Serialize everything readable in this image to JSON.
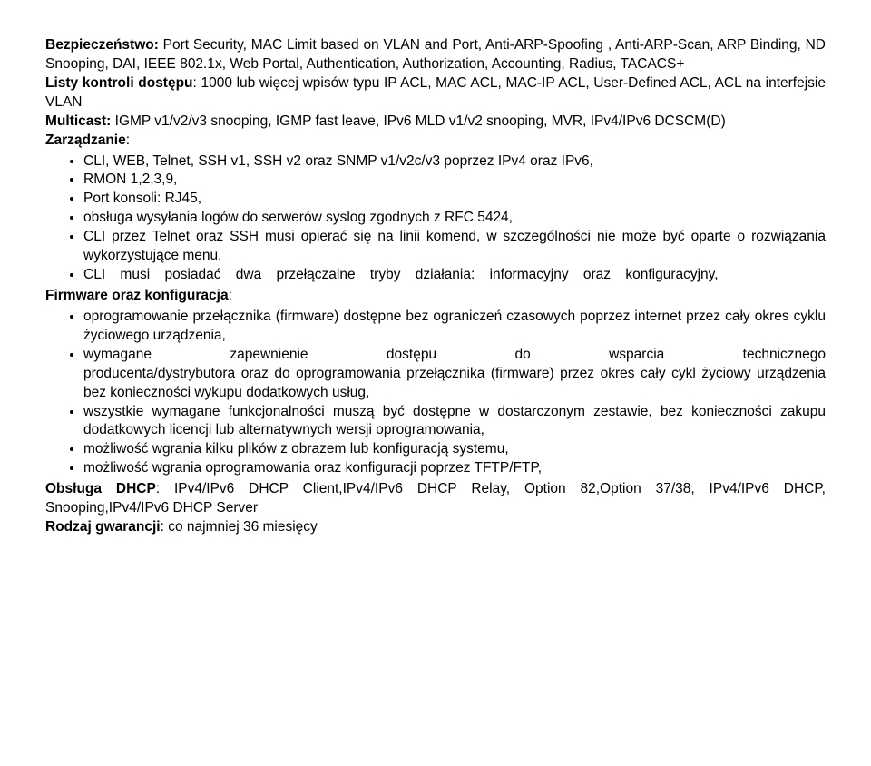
{
  "p1_label": "Bezpieczeństwo:",
  "p1_text": " Port Security, MAC Limit based on VLAN and Port, Anti-ARP-Spoofing , Anti-ARP-Scan, ARP Binding, ND Snooping, DAI, IEEE 802.1x, Web Portal, Authentication, Authorization, Accounting, Radius, TACACS+",
  "p2_label": "Listy kontroli dostępu",
  "p2_text": ": 1000 lub więcej wpisów typu IP ACL, MAC ACL, MAC-IP ACL, User-Defined ACL, ACL na interfejsie VLAN",
  "p3_label": "Multicast:",
  "p3_text": " IGMP v1/v2/v3 snooping, IGMP fast leave, IPv6 MLD v1/v2 snooping, MVR, IPv4/IPv6 DCSCM(D)",
  "mgmt_label": "Zarządzanie",
  "mgmt_colon": ":",
  "mgmt_items": {
    "i0": "CLI, WEB, Telnet, SSH v1, SSH v2 oraz SNMP v1/v2c/v3 poprzez IPv4 oraz IPv6,",
    "i1": "RMON 1,2,3,9,",
    "i2": "Port konsoli: RJ45,",
    "i3": "obsługa wysyłania logów do serwerów syslog zgodnych z RFC 5424,",
    "i4": "CLI przez Telnet oraz SSH musi opierać się na linii komend, w szczególności nie może być oparte o rozwiązania wykorzystujące menu,",
    "i5": "CLI musi posiadać dwa przełączalne tryby działania: informacyjny oraz konfiguracyjny,"
  },
  "fw_label": "Firmware oraz konfiguracja",
  "fw_colon": ":",
  "fw_items": {
    "i0": "oprogramowanie przełącznika (firmware) dostępne bez ograniczeń czasowych poprzez internet przez cały okres cyklu życiowego urządzenia,",
    "i1": "wymagane zapewnienie dostępu do wsparcia technicznego producenta/dystrybutora oraz do oprogramowania przełącznika (firmware) przez okres cały cykl życiowy urządzenia bez konieczności wykupu dodatkowych usług,",
    "i2": "wszystkie wymagane funkcjonalności muszą być dostępne w dostarczonym zestawie, bez konieczności zakupu dodatkowych licencji lub alternatywnych wersji oprogramowania,",
    "i3": "możliwość wgrania kilku plików z obrazem lub konfiguracją systemu,",
    "i4": "możliwość wgrania oprogramowania oraz konfiguracji poprzez TFTP/FTP,"
  },
  "dhcp_label": "Obsługa DHCP",
  "dhcp_text": ": IPv4/IPv6 DHCP Client,IPv4/IPv6 DHCP Relay, Option 82,Option 37/38, IPv4/IPv6 DHCP, Snooping,IPv4/IPv6 DHCP Server",
  "warranty_label": "Rodzaj gwarancji",
  "warranty_text": ": co najmniej 36 miesięcy"
}
